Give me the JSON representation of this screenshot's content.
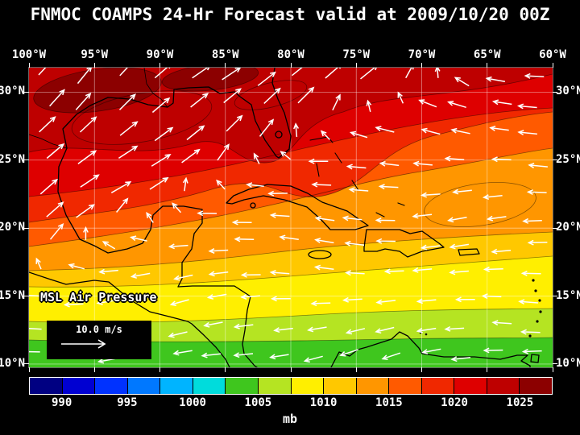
{
  "title": "FNMOC COAMPS 24-Hr Forecast valid at 2009/10/20 00Z",
  "map": {
    "field_label": "MSL Air Pressure",
    "wind_scale_label": "10.0 m/s",
    "lon_tick_labels": [
      "100°W",
      "95°W",
      "90°W",
      "85°W",
      "80°W",
      "75°W",
      "70°W",
      "65°W",
      "60°W"
    ],
    "lat_tick_labels_left": [
      "30°N",
      "25°N",
      "20°N",
      "15°N",
      "10°N"
    ],
    "lat_tick_labels_right": [
      "30°N",
      "25°N",
      "20°N",
      "15°N",
      "10°N"
    ]
  },
  "colorbar": {
    "unit_label": "mb",
    "tick_labels": [
      "990",
      "995",
      "1000",
      "1005",
      "1010",
      "1015",
      "1020",
      "1025"
    ],
    "segment_colors": [
      "#000082",
      "#0000D2",
      "#0032FF",
      "#0078FF",
      "#00B4FF",
      "#00DCDC",
      "#3FC61E",
      "#B5E422",
      "#FFEF00",
      "#FFC800",
      "#FF9600",
      "#FF5A00",
      "#F02800",
      "#DE0000",
      "#BE0000",
      "#8C0000"
    ]
  },
  "colors": {
    "background": "#000000",
    "text": "#FFFFFF",
    "wind_arrows": "#FFFFFF"
  },
  "chart_data": {
    "type": "heatmap",
    "title": "FNMOC COAMPS 24-Hr Forecast valid at 2009/10/20 00Z",
    "field": "MSL Air Pressure",
    "units": "mb",
    "forecast_hours": 24,
    "valid_time": "2009/10/20 00Z",
    "lon_ticks_deg_w": [
      100,
      95,
      90,
      85,
      80,
      75,
      70,
      65,
      60
    ],
    "lat_ticks_deg_n": [
      30,
      25,
      20,
      15,
      10
    ],
    "colorbar_levels_mb": [
      990,
      995,
      1000,
      1005,
      1010,
      1015,
      1020,
      1025
    ],
    "contour_interval_mb": 2.5,
    "pattern": "High pressure above 1020 mb over the northwest Gulf of Mexico decreasing southeastward to about 1005 mb over the southern Caribbean; southwesterly flow over the Gulf, easterly trade winds over the Caribbean and tropical Atlantic",
    "wind_reference_ms": 10
  }
}
